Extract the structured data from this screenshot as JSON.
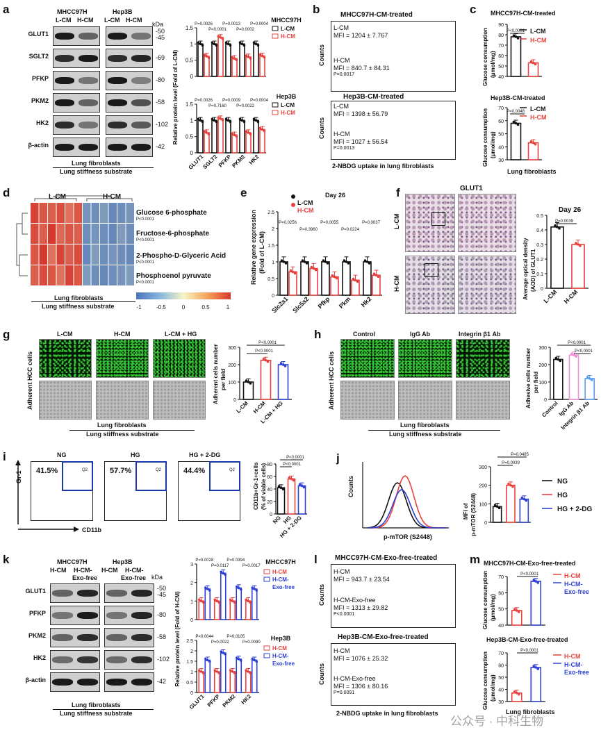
{
  "panels": {
    "a": {
      "letter": "a",
      "groups": [
        "MHCC97H",
        "Hep3B"
      ],
      "conditions": [
        "L-CM",
        "H-CM",
        "L-CM",
        "H-CM"
      ],
      "kda_header": "kDa",
      "rows": [
        {
          "name": "GLUT1",
          "kda": [
            "50",
            "45"
          ]
        },
        {
          "name": "SGLT2",
          "kda": [
            "69"
          ]
        },
        {
          "name": "PFKP",
          "kda": [
            "80"
          ]
        },
        {
          "name": "PKM2",
          "kda": [
            "58"
          ]
        },
        {
          "name": "HK2",
          "kda": [
            "102"
          ]
        },
        {
          "name": "β-actin",
          "kda": [
            "42"
          ]
        }
      ],
      "footer1": "Lung fibroblasts",
      "footer2": "Lung stiffness substrate"
    },
    "b": {
      "letter": "b",
      "title1": "MHCC97H-CM-treated",
      "title2": "Hep3B-CM-treated",
      "xlabel": "2-NBDG uptake in lung fibroblasts",
      "ylabel": "Counts",
      "m_lcm": "L-CM",
      "m_lcm_mfi": "MFI = 1204 ± 7.767",
      "m_hcm": "H-CM",
      "m_hcm_mfi": "MFI = 840.7 ± 84.31",
      "m_p": "P=0.0017",
      "h_lcm": "L-CM",
      "h_lcm_mfi": "MFI = 1398 ± 56.79",
      "h_hcm": "H-CM",
      "h_hcm_mfi": "MFI = 1027 ± 56.54",
      "h_p": "P=0.0013"
    },
    "c": {
      "letter": "c",
      "title1": "MHCC97H-CM-treated",
      "title2": "Hep3B-CM-treated",
      "ylabel1": "Glucose consumption",
      "ylabel2": "(μmol/mg)",
      "xlabel": "Lung fibroblasts",
      "p1": "P<0.0001",
      "p2": "P=0.0048",
      "legend": [
        "L-CM",
        "H-CM"
      ]
    },
    "d": {
      "letter": "d",
      "col_labels": [
        "L-CM",
        "H-CM"
      ],
      "metabolites": [
        {
          "name": "Glucose 6-phosphate",
          "p": "P<0.0001"
        },
        {
          "name": "Fructose-6-phosphate",
          "p": "P<0.0001"
        },
        {
          "name": "2-Phospho-D-Glyceric Acid",
          "p": "P<0.0001"
        },
        {
          "name": "Phosphoenol pyruvate",
          "p": "P<0.0001"
        }
      ],
      "footer1": "Lung fibroblasts",
      "footer2": "Lung stiffness substrate",
      "scale_ticks": [
        "-1",
        "-0.5",
        "0",
        "0.5",
        "1"
      ]
    },
    "e": {
      "letter": "e",
      "title": "Day 26",
      "legend": [
        "L-CM",
        "H-CM"
      ],
      "ylabel1": "Relative gene expression",
      "ylabel2": "(Fold of L-CM)",
      "yticks": [
        "0",
        "0.5",
        "1.0",
        "1.5",
        "2.0",
        "2.5"
      ],
      "genes": [
        "Slc2a1",
        "Slc5a2",
        "Pfkp",
        "Pkm",
        "Hk2"
      ],
      "pvals": [
        "P=0.0256",
        "P=0.3960",
        "P=0.0055",
        "P=0.0224",
        "P=0.0037"
      ]
    },
    "f": {
      "letter": "f",
      "title": "GLUT1",
      "rows": [
        "L-CM",
        "H-CM"
      ],
      "chart_title": "Day 26",
      "ylabel1": "Average optical density",
      "ylabel2": "(AOD) of GLUT1",
      "p": "P=0.0039",
      "yticks": [
        "0.0",
        "0.1",
        "0.2",
        "0.3",
        "0.4",
        "0.5"
      ],
      "categories": [
        "L-CM",
        "H-CM"
      ]
    },
    "g": {
      "letter": "g",
      "cols": [
        "L-CM",
        "H-CM",
        "L-CM + HG"
      ],
      "ylabel": "Adherent HCC cells",
      "footer1": "Lung fibroblasts",
      "footer2": "Lung stiffness substrate",
      "chart_ylabel1": "Adherent cells number",
      "chart_ylabel2": "per field",
      "p1": "P<0.0001",
      "p2": "P<0.0001",
      "yticks": [
        "0",
        "100",
        "200",
        "300"
      ],
      "categories": [
        "L-CM",
        "H-CM",
        "L-CM + HG"
      ]
    },
    "h": {
      "letter": "h",
      "cols": [
        "Control",
        "IgG Ab",
        "Integrin β1 Ab"
      ],
      "ylabel": "Adherent HCC cells",
      "footer1": "Lung fibroblasts",
      "footer2": "Lung stiffness substrate",
      "chart_ylabel1": "Adhesive cells number",
      "chart_ylabel2": "per field",
      "p1": "P<0.0001",
      "p2": "P<0.0001",
      "yticks": [
        "0",
        "100",
        "200",
        "300"
      ],
      "categories": [
        "Control",
        "IgG Ab",
        "Integrin β1 Ab"
      ]
    },
    "i": {
      "letter": "i",
      "cols": [
        "NG",
        "HG",
        "HG + 2-DG"
      ],
      "percents": [
        "41.5%",
        "57.7%",
        "44.4%"
      ],
      "quad": "Q2",
      "yaxis": "Gr-1",
      "xaxis": "CD11b",
      "chart_ylabel1": "CD11b+Gr-1+cells",
      "chart_ylabel2": "(% of viable cells)",
      "p1": "P<0.0001",
      "p2": "P<0.0001",
      "yticks": [
        "0",
        "20",
        "40",
        "60",
        "80"
      ],
      "categories": [
        "NG",
        "HG",
        "HG + 2-DG"
      ]
    },
    "j": {
      "letter": "j",
      "ylabel": "Counts",
      "xlabel": "p-mTOR (S2448)",
      "chart_ylabel1": "MFI of",
      "chart_ylabel2": "p-mTOR (S2448)",
      "p1": "P=0.0039",
      "p2": "P=0.0485",
      "yticks": [
        "0",
        "100",
        "200",
        "300"
      ],
      "legend": [
        "NG",
        "HG",
        "HG + 2-DG"
      ]
    },
    "k": {
      "letter": "k",
      "groups": [
        "MHCC97H",
        "Hep3B"
      ],
      "conditions": [
        "H-CM",
        "H-CM-",
        "H-CM",
        "H-CM-"
      ],
      "conditions2": [
        "Exo-free",
        "Exo-free"
      ],
      "kda_header": "kDa",
      "rows": [
        {
          "name": "GLUT1",
          "kda": [
            "50",
            "45"
          ]
        },
        {
          "name": "PFKP",
          "kda": [
            "80"
          ]
        },
        {
          "name": "PKM2",
          "kda": [
            "58"
          ]
        },
        {
          "name": "HK2",
          "kda": [
            "102"
          ]
        },
        {
          "name": "β-actin",
          "kda": [
            "42"
          ]
        }
      ],
      "footer1": "Lung fibroblasts",
      "footer2": "Lung stiffness substrate"
    },
    "l": {
      "letter": "l",
      "title1": "MHCC97H-CM-Exo-free-treated",
      "title2": "Hep3B-CM-Exo-free-treated",
      "ylabel": "Counts",
      "xlabel": "2-NBDG uptake in lung fibroblasts",
      "m_hcm": "H-CM",
      "m_hcm_mfi": "MFI = 943.7 ± 23.54",
      "m_exo": "H-CM-Exo-free",
      "m_exo_mfi": "MFI = 1313 ± 29.82",
      "m_p": "P<0.0001",
      "h_hcm": "H-CM",
      "h_hcm_mfi": "MFI = 1076 ± 25.32",
      "h_exo": "H-CM-Exo-free",
      "h_exo_mfi": "MFI = 1306 ± 80.16",
      "h_p": "P=0.0091"
    },
    "m": {
      "letter": "m",
      "title1": "MHCC97H-CM-Exo-free-treated",
      "title2": "Hep3B-CM-Exo-free-treated",
      "ylabel1": "Glucose consumption",
      "ylabel2": "(μmol/mg)",
      "xlabel": "Lung fibroblasts",
      "p1": "P<0.0001",
      "p2": "P<0.0001",
      "legend": [
        "H-CM",
        "H-CM-",
        "Exo-free"
      ]
    }
  },
  "watermark": "公众号 · 中科生物",
  "colors": {
    "black": "#111111",
    "red": "#e8403c",
    "blue": "#2c3fd6",
    "pink": "#f08fd6",
    "lightblue": "#5a9bf2"
  },
  "chart_data": [
    {
      "id": "a-mhcc97h",
      "type": "bar",
      "title": "MHCC97H",
      "ylabel": "Relative protein level (Fold of L-CM)",
      "categories": [
        "GLUT1",
        "SGLT2",
        "PFKP",
        "PKM2",
        "HK2"
      ],
      "series": [
        {
          "name": "L-CM",
          "values": [
            1.0,
            1.0,
            1.0,
            1.0,
            1.0
          ]
        },
        {
          "name": "H-CM",
          "values": [
            0.62,
            1.2,
            0.55,
            0.6,
            0.63
          ]
        }
      ],
      "pvals": [
        "P=0.0026",
        "P<0.0001",
        "P=0.0013",
        "P=0.0002",
        "P=0.0004"
      ],
      "ylim": [
        0,
        1.5
      ],
      "yticks": [
        0,
        0.5,
        1.0,
        1.5
      ]
    },
    {
      "id": "a-hep3b",
      "type": "bar",
      "title": "Hep3B",
      "ylabel": "Relative protein level (Fold of L-CM)",
      "categories": [
        "GLUT1",
        "SGLT2",
        "PFKP",
        "PKM2",
        "HK2"
      ],
      "series": [
        {
          "name": "L-CM",
          "values": [
            1.0,
            1.0,
            1.0,
            1.0,
            1.0
          ]
        },
        {
          "name": "H-CM",
          "values": [
            0.62,
            1.05,
            0.55,
            0.62,
            0.72
          ]
        }
      ],
      "pvals": [
        "P=0.0026",
        "P=0.7160",
        "P=0.0009",
        "P=0.0022",
        "P=0.0004"
      ],
      "ylim": [
        0,
        1.5
      ],
      "yticks": [
        0,
        0.5,
        1.0,
        1.5
      ]
    },
    {
      "id": "c-mhcc97h",
      "type": "bar",
      "categories": [
        "L-CM",
        "H-CM"
      ],
      "values": [
        78,
        53
      ],
      "ylim": [
        40,
        90
      ],
      "yticks": [
        40,
        50,
        60,
        70,
        80,
        90
      ]
    },
    {
      "id": "c-hep3b",
      "type": "bar",
      "categories": [
        "L-CM",
        "H-CM"
      ],
      "values": [
        58,
        43
      ],
      "ylim": [
        30,
        70
      ],
      "yticks": [
        30,
        40,
        50,
        60,
        70
      ]
    },
    {
      "id": "d-heatmap",
      "type": "heatmap",
      "rows": [
        "Glucose 6-phosphate",
        "Fructose-6-phosphate",
        "2-Phospho-D-Glyceric Acid",
        "Phosphoenol pyruvate"
      ],
      "values": [
        [
          0.95,
          0.85,
          0.8,
          0.9,
          0.7,
          0.85,
          -0.75,
          -0.8,
          -0.7,
          -0.85,
          -0.8,
          -0.75
        ],
        [
          0.9,
          0.8,
          1.0,
          0.75,
          0.85,
          0.8,
          -0.8,
          -0.75,
          -0.8,
          -0.85,
          -0.7,
          -0.8
        ],
        [
          0.85,
          1.0,
          0.7,
          0.95,
          0.8,
          0.9,
          -0.85,
          -0.7,
          -0.8,
          -0.75,
          -0.8,
          -0.85
        ],
        [
          0.8,
          0.9,
          0.85,
          0.7,
          0.95,
          0.85,
          -0.7,
          -0.8,
          -0.85,
          -0.8,
          -0.75,
          -0.7
        ]
      ],
      "scale": [
        -1,
        1
      ]
    },
    {
      "id": "e-genes",
      "type": "bar",
      "categories": [
        "Slc2a1",
        "Slc5a2",
        "Pfkp",
        "Pkm",
        "Hk2"
      ],
      "series": [
        {
          "name": "L-CM",
          "values": [
            1.0,
            1.0,
            1.0,
            1.0,
            1.0
          ]
        },
        {
          "name": "H-CM",
          "values": [
            0.7,
            0.8,
            0.55,
            0.45,
            0.6
          ]
        }
      ],
      "ylim": [
        0,
        2.5
      ]
    },
    {
      "id": "f-aod",
      "type": "bar",
      "categories": [
        "L-CM",
        "H-CM"
      ],
      "values": [
        0.42,
        0.3
      ],
      "ylim": [
        0,
        0.5
      ]
    },
    {
      "id": "g-adherent",
      "type": "bar",
      "categories": [
        "L-CM",
        "H-CM",
        "L-CM + HG"
      ],
      "values": [
        100,
        225,
        200
      ],
      "ylim": [
        0,
        300
      ]
    },
    {
      "id": "h-adhesive",
      "type": "bar",
      "categories": [
        "Control",
        "IgG Ab",
        "Integrin β1 Ab"
      ],
      "values": [
        230,
        255,
        120
      ],
      "ylim": [
        0,
        300
      ]
    },
    {
      "id": "i-mdsc",
      "type": "bar",
      "categories": [
        "NG",
        "HG",
        "HG + 2-DG"
      ],
      "values": [
        42,
        56,
        45
      ],
      "ylim": [
        0,
        80
      ]
    },
    {
      "id": "j-mtor",
      "type": "bar",
      "categories": [
        "NG",
        "HG",
        "HG + 2-DG"
      ],
      "values": [
        85,
        200,
        125
      ],
      "ylim": [
        0,
        300
      ]
    },
    {
      "id": "k-mhcc97h",
      "type": "bar",
      "title": "MHCC97H",
      "ylabel": "Relative protein level (Fold of H-CM)",
      "categories": [
        "GLUT1",
        "PFKP",
        "PKM2",
        "HK2"
      ],
      "series": [
        {
          "name": "H-CM",
          "values": [
            1.0,
            1.0,
            1.0,
            1.0
          ]
        },
        {
          "name": "H-CM-Exo-free",
          "values": [
            1.65,
            2.5,
            1.7,
            1.65
          ]
        }
      ],
      "pvals": [
        "P=0.0028",
        "P=0.0117",
        "P=0.0394",
        "P=0.0017"
      ],
      "ylim": [
        0,
        3
      ],
      "yticks": [
        0,
        1,
        2,
        3
      ]
    },
    {
      "id": "k-hep3b",
      "type": "bar",
      "title": "Hep3B",
      "ylabel": "Relative protein level (Fold of H-CM)",
      "categories": [
        "GLUT1",
        "PFKP",
        "PKM2",
        "HK2"
      ],
      "series": [
        {
          "name": "H-CM",
          "values": [
            1.0,
            1.0,
            1.0,
            1.0
          ]
        },
        {
          "name": "H-CM-Exo-free",
          "values": [
            1.55,
            1.9,
            1.6,
            1.55
          ]
        }
      ],
      "pvals": [
        "P=0.0044",
        "P=0.0022",
        "P=0.0105",
        "P=0.0090"
      ],
      "ylim": [
        0,
        2.5
      ],
      "yticks": [
        0,
        0.5,
        1.0,
        1.5,
        2.0,
        2.5
      ]
    },
    {
      "id": "m-mhcc97h",
      "type": "bar",
      "categories": [
        "H-CM",
        "H-CM-Exo-free"
      ],
      "values": [
        49,
        67
      ],
      "ylim": [
        40,
        70
      ],
      "yticks": [
        40,
        50,
        60,
        70
      ]
    },
    {
      "id": "m-hep3b",
      "type": "bar",
      "categories": [
        "H-CM",
        "H-CM-Exo-free"
      ],
      "values": [
        37,
        58
      ],
      "ylim": [
        30,
        70
      ],
      "yticks": [
        30,
        40,
        50,
        60,
        70
      ]
    }
  ]
}
